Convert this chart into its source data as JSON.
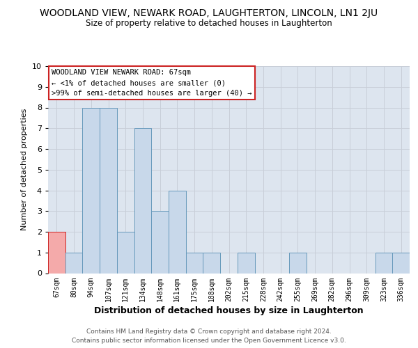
{
  "title_main": "WOODLAND VIEW, NEWARK ROAD, LAUGHTERTON, LINCOLN, LN1 2JU",
  "title_sub": "Size of property relative to detached houses in Laughterton",
  "xlabel": "Distribution of detached houses by size in Laughterton",
  "ylabel": "Number of detached properties",
  "categories": [
    "67sqm",
    "80sqm",
    "94sqm",
    "107sqm",
    "121sqm",
    "134sqm",
    "148sqm",
    "161sqm",
    "175sqm",
    "188sqm",
    "202sqm",
    "215sqm",
    "228sqm",
    "242sqm",
    "255sqm",
    "269sqm",
    "282sqm",
    "296sqm",
    "309sqm",
    "323sqm",
    "336sqm"
  ],
  "values": [
    2,
    1,
    8,
    8,
    2,
    7,
    3,
    4,
    1,
    1,
    0,
    1,
    0,
    0,
    1,
    0,
    0,
    0,
    0,
    1,
    1
  ],
  "highlight_index": 0,
  "bar_color": "#c8d8ea",
  "bar_edge_color": "#6699bb",
  "highlight_color": "#f4aaaa",
  "highlight_edge_color": "#cc2222",
  "ylim": [
    0,
    10
  ],
  "yticks": [
    0,
    1,
    2,
    3,
    4,
    5,
    6,
    7,
    8,
    9,
    10
  ],
  "grid_color": "#c8ced8",
  "bg_color": "#dde5ef",
  "annotation_box_edge": "#cc2222",
  "annotation_lines": [
    "WOODLAND VIEW NEWARK ROAD: 67sqm",
    "← <1% of detached houses are smaller (0)",
    ">99% of semi-detached houses are larger (40) →"
  ],
  "footer_lines": [
    "Contains HM Land Registry data © Crown copyright and database right 2024.",
    "Contains public sector information licensed under the Open Government Licence v3.0."
  ]
}
